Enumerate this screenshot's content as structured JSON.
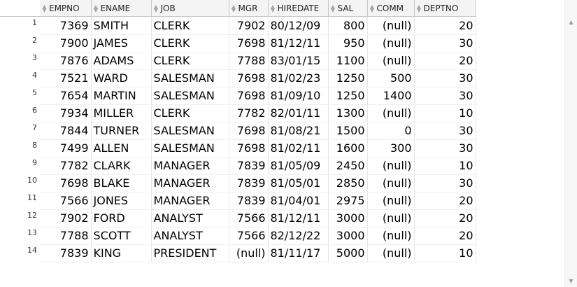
{
  "grid": {
    "columns": [
      "EMPNO",
      "ENAME",
      "JOB",
      "MGR",
      "HIREDATE",
      "SAL",
      "COMM",
      "DEPTNO"
    ],
    "rows": [
      {
        "n": "1",
        "cells": [
          "7369",
          "SMITH",
          "CLERK",
          "7902",
          "80/12/09",
          "800",
          "(null)",
          "20"
        ]
      },
      {
        "n": "2",
        "cells": [
          "7900",
          "JAMES",
          "CLERK",
          "7698",
          "81/12/11",
          "950",
          "(null)",
          "30"
        ]
      },
      {
        "n": "3",
        "cells": [
          "7876",
          "ADAMS",
          "CLERK",
          "7788",
          "83/01/15",
          "1100",
          "(null)",
          "20"
        ]
      },
      {
        "n": "4",
        "cells": [
          "7521",
          "WARD",
          "SALESMAN",
          "7698",
          "81/02/23",
          "1250",
          "500",
          "30"
        ]
      },
      {
        "n": "5",
        "cells": [
          "7654",
          "MARTIN",
          "SALESMAN",
          "7698",
          "81/09/10",
          "1250",
          "1400",
          "30"
        ]
      },
      {
        "n": "6",
        "cells": [
          "7934",
          "MILLER",
          "CLERK",
          "7782",
          "82/01/11",
          "1300",
          "(null)",
          "10"
        ]
      },
      {
        "n": "7",
        "cells": [
          "7844",
          "TURNER",
          "SALESMAN",
          "7698",
          "81/08/21",
          "1500",
          "0",
          "30"
        ]
      },
      {
        "n": "8",
        "cells": [
          "7499",
          "ALLEN",
          "SALESMAN",
          "7698",
          "81/02/11",
          "1600",
          "300",
          "30"
        ]
      },
      {
        "n": "9",
        "cells": [
          "7782",
          "CLARK",
          "MANAGER",
          "7839",
          "81/05/09",
          "2450",
          "(null)",
          "10"
        ]
      },
      {
        "n": "10",
        "cells": [
          "7698",
          "BLAKE",
          "MANAGER",
          "7839",
          "81/05/01",
          "2850",
          "(null)",
          "30"
        ]
      },
      {
        "n": "11",
        "cells": [
          "7566",
          "JONES",
          "MANAGER",
          "7839",
          "81/04/01",
          "2975",
          "(null)",
          "20"
        ]
      },
      {
        "n": "12",
        "cells": [
          "7902",
          "FORD",
          "ANALYST",
          "7566",
          "81/12/11",
          "3000",
          "(null)",
          "20"
        ]
      },
      {
        "n": "13",
        "cells": [
          "7788",
          "SCOTT",
          "ANALYST",
          "7566",
          "82/12/22",
          "3000",
          "(null)",
          "20"
        ]
      },
      {
        "n": "14",
        "cells": [
          "7839",
          "KING",
          "PRESIDENT",
          "(null)",
          "81/11/17",
          "5000",
          "(null)",
          "10"
        ]
      }
    ]
  },
  "icons": {
    "sort": "sort-icon",
    "scroll_up": "scroll-up-arrow-icon",
    "scroll_down": "scroll-down-arrow-icon"
  }
}
